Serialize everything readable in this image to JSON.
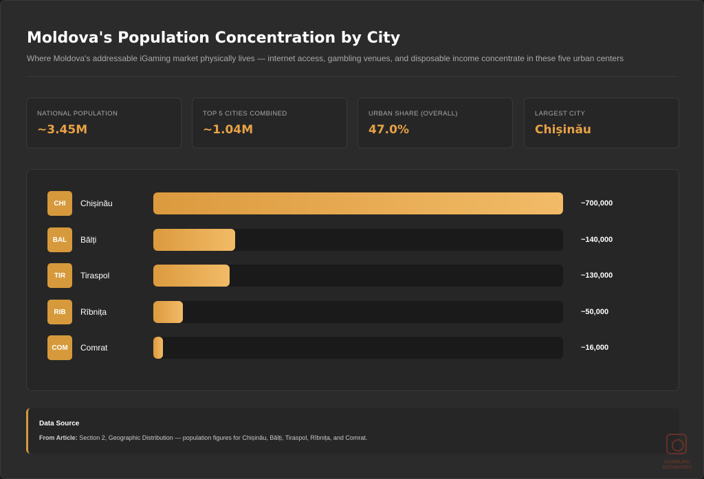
{
  "header": {
    "title": "Moldova's Population Concentration by City",
    "subtitle": "Where Moldova's addressable iGaming market physically lives — internet access, gambling venues, and disposable income concentrate in these five urban centers"
  },
  "stats": [
    {
      "label": "National Population",
      "value": "~3.45M"
    },
    {
      "label": "Top 5 Cities Combined",
      "value": "~1.04M"
    },
    {
      "label": "Urban Share (Overall)",
      "value": "47.0%"
    },
    {
      "label": "Largest City",
      "value": "Chișinău"
    }
  ],
  "chart_data": {
    "type": "bar",
    "orientation": "horizontal",
    "categories": [
      "Chișinău",
      "Bălți",
      "Tiraspol",
      "Rîbnița",
      "Comrat"
    ],
    "codes": [
      "CHI",
      "BAL",
      "TIR",
      "RIB",
      "COM"
    ],
    "values": [
      700000,
      140000,
      130000,
      50000,
      16000
    ],
    "value_labels": [
      "~700,000",
      "~140,000",
      "~130,000",
      "~50,000",
      "~16,000"
    ],
    "xlim": [
      0,
      700000
    ],
    "grid": false,
    "colors": {
      "bar_start": "#dc9a3e",
      "bar_end": "#f2bb67",
      "track": "#1a1a1a",
      "badge": "#d69a3c"
    }
  },
  "source": {
    "title": "Data Source",
    "prefix": "From Article:",
    "text": "Section 2, Geographic Distribution — population figures for Chișinău, Bălți, Tiraspol, Rîbnița, and Comrat."
  },
  "watermark": {
    "icon": "roulette-icon",
    "line1": "GAMBLING",
    "line2": "DATABASES"
  },
  "colors": {
    "accent": "#e8a246",
    "background": "#2b2b2b",
    "panel": "#262626"
  }
}
